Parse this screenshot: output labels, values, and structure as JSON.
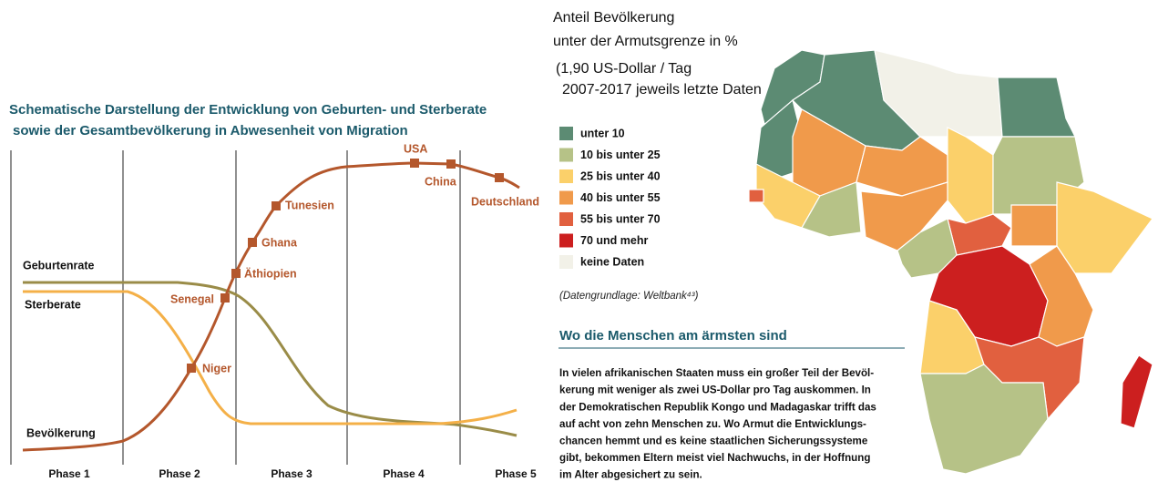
{
  "diagram": {
    "title_lines": [
      "Schematische Darstellung der Entwicklung von Geburten- und Sterberate",
      "sowie der Gesamtbevölkerung in Abwesenheit von Migration"
    ],
    "curves": {
      "birth": "Geburtenrate",
      "death": "Sterberate",
      "population": "Bevölkerung"
    },
    "countries": [
      "USA",
      "China",
      "Deutschland",
      "Tunesien",
      "Ghana",
      "Äthiopien",
      "Senegal",
      "Niger"
    ],
    "phases": [
      "Phase 1",
      "Phase 2",
      "Phase 3",
      "Phase 4",
      "Phase 5"
    ]
  },
  "map": {
    "title_lines": [
      "Anteil Bevölkerung",
      "unter der Armutsgrenze in %",
      "(1,90 US-Dollar / Tag",
      "2007-2017 jeweils letzte Daten"
    ],
    "legend": [
      {
        "label": "unter 10",
        "color": "#5c8b73"
      },
      {
        "label": "10 bis unter 25",
        "color": "#b6c287"
      },
      {
        "label": "25 bis unter 40",
        "color": "#fbd06a"
      },
      {
        "label": "40 bis unter 55",
        "color": "#f09a4b"
      },
      {
        "label": "55 bis unter 70",
        "color": "#e1603f"
      },
      {
        "label": "70 und mehr",
        "color": "#cc1f1f"
      },
      {
        "label": "keine Daten",
        "color": "#f2f1e8"
      }
    ],
    "source": "(Datengrundlage: Weltbank⁴³)",
    "heading": "Wo die Menschen am ärmsten sind",
    "text_lines": [
      "In vielen afrikanischen Staaten muss ein großer Teil der Bevöl-",
      "kerung mit weniger als zwei US-Dollar pro Tag auskommen. In",
      "der Demokratischen Republik Kongo und Madagaskar trifft das",
      "auf acht von zehn Menschen zu. Wo Armut die Entwicklungs-",
      "chancen hemmt und es keine staatlichen Sicherungssysteme",
      "gibt, bekommen Eltern meist viel Nachwuchs, in der Hoffnung",
      "im Alter abgesichert zu sein."
    ]
  }
}
